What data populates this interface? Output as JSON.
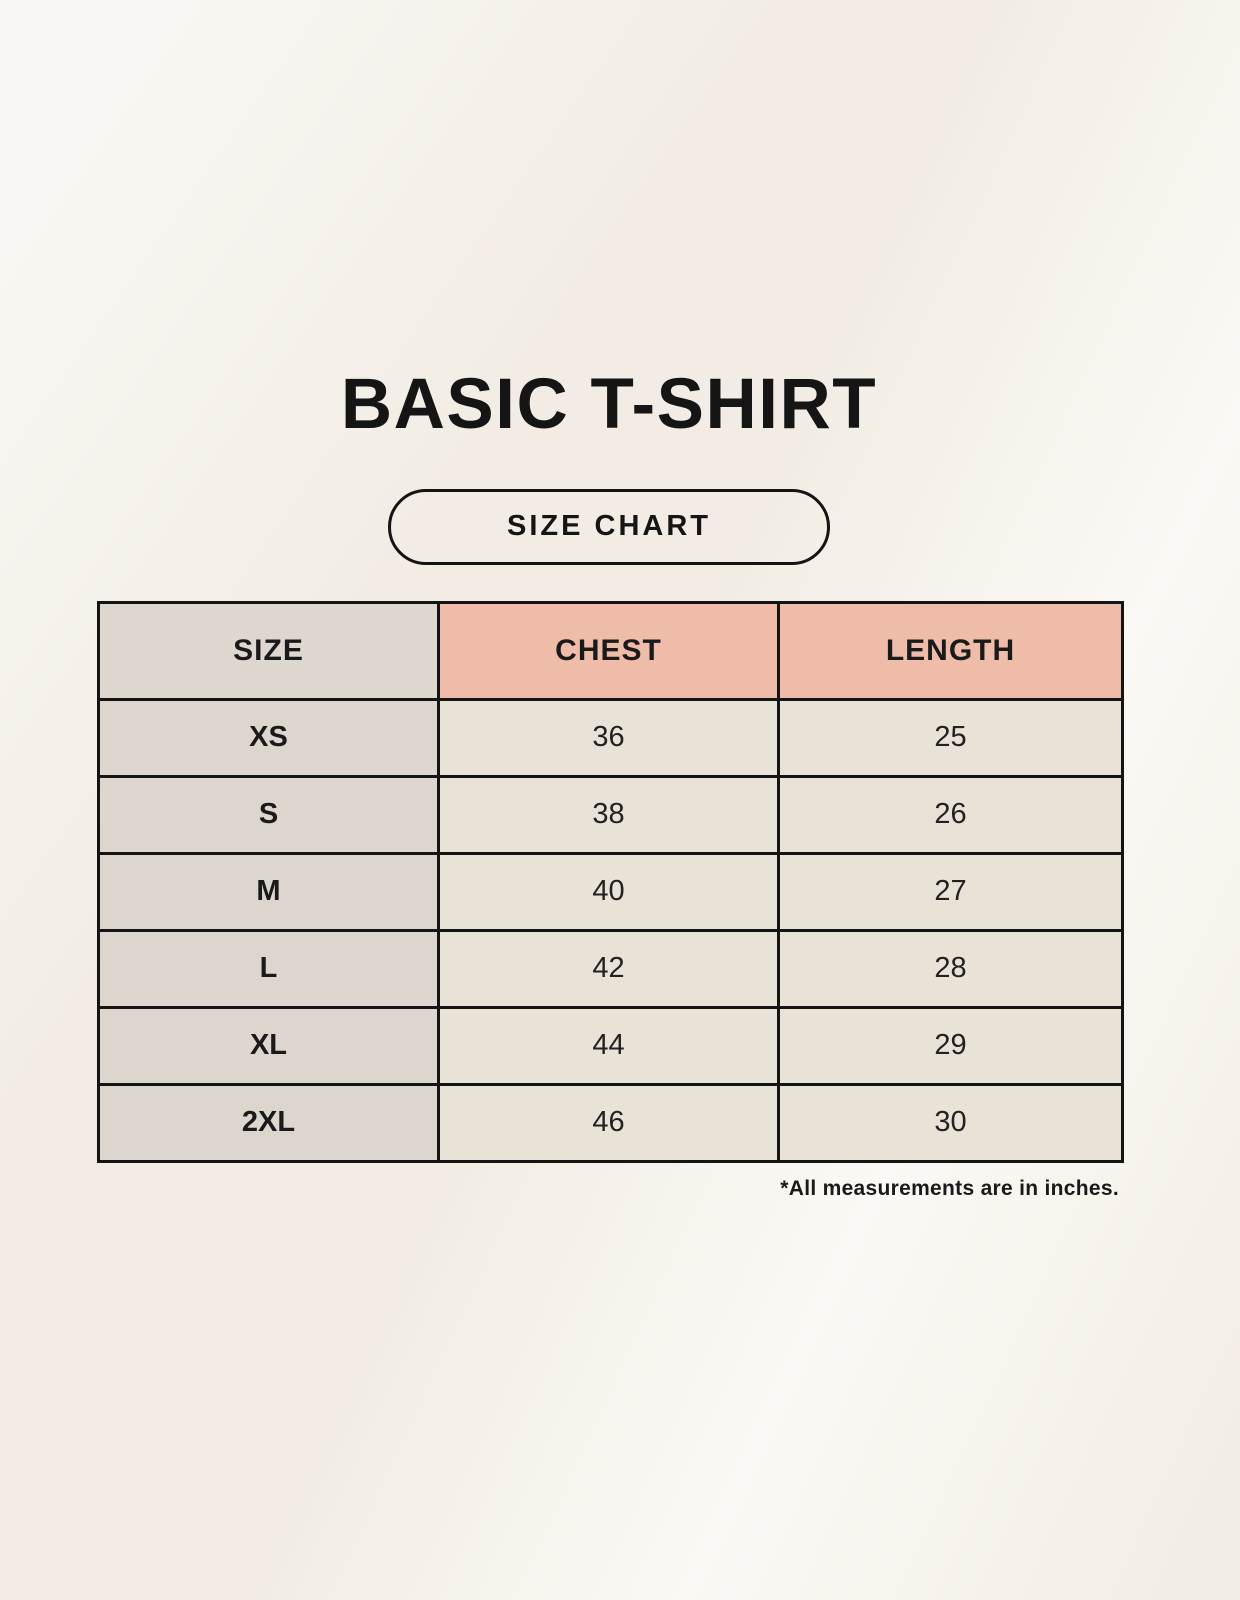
{
  "page": {
    "title": "BASIC T-SHIRT",
    "size_chart_button": "SIZE CHART",
    "footnote": "*All measurements are in inches."
  },
  "table": {
    "headers": [
      "SIZE",
      "CHEST",
      "LENGTH"
    ],
    "rows": [
      {
        "size": "XS",
        "chest": "36",
        "length": "25"
      },
      {
        "size": "S",
        "chest": "38",
        "length": "26"
      },
      {
        "size": "M",
        "chest": "40",
        "length": "27"
      },
      {
        "size": "L",
        "chest": "42",
        "length": "28"
      },
      {
        "size": "XL",
        "chest": "44",
        "length": "29"
      },
      {
        "size": "2XL",
        "chest": "46",
        "length": "30"
      }
    ]
  },
  "colors": {
    "page_background": "#f8f4ed",
    "header_size_bg": "#ded7d0",
    "header_measurement_bg": "#f0bcaa",
    "size_column_bg": "#ddd6cf",
    "data_cell_bg": "#e9e2d7",
    "border": "#141414",
    "text": "#171717"
  },
  "chart_data": {
    "type": "table",
    "title": "BASIC T-SHIRT",
    "columns": [
      "SIZE",
      "CHEST",
      "LENGTH"
    ],
    "rows": [
      [
        "XS",
        36,
        25
      ],
      [
        "S",
        38,
        26
      ],
      [
        "M",
        40,
        27
      ],
      [
        "L",
        42,
        28
      ],
      [
        "XL",
        44,
        29
      ],
      [
        "2XL",
        46,
        30
      ]
    ],
    "units": "inches",
    "notes": "*All measurements are in inches."
  }
}
